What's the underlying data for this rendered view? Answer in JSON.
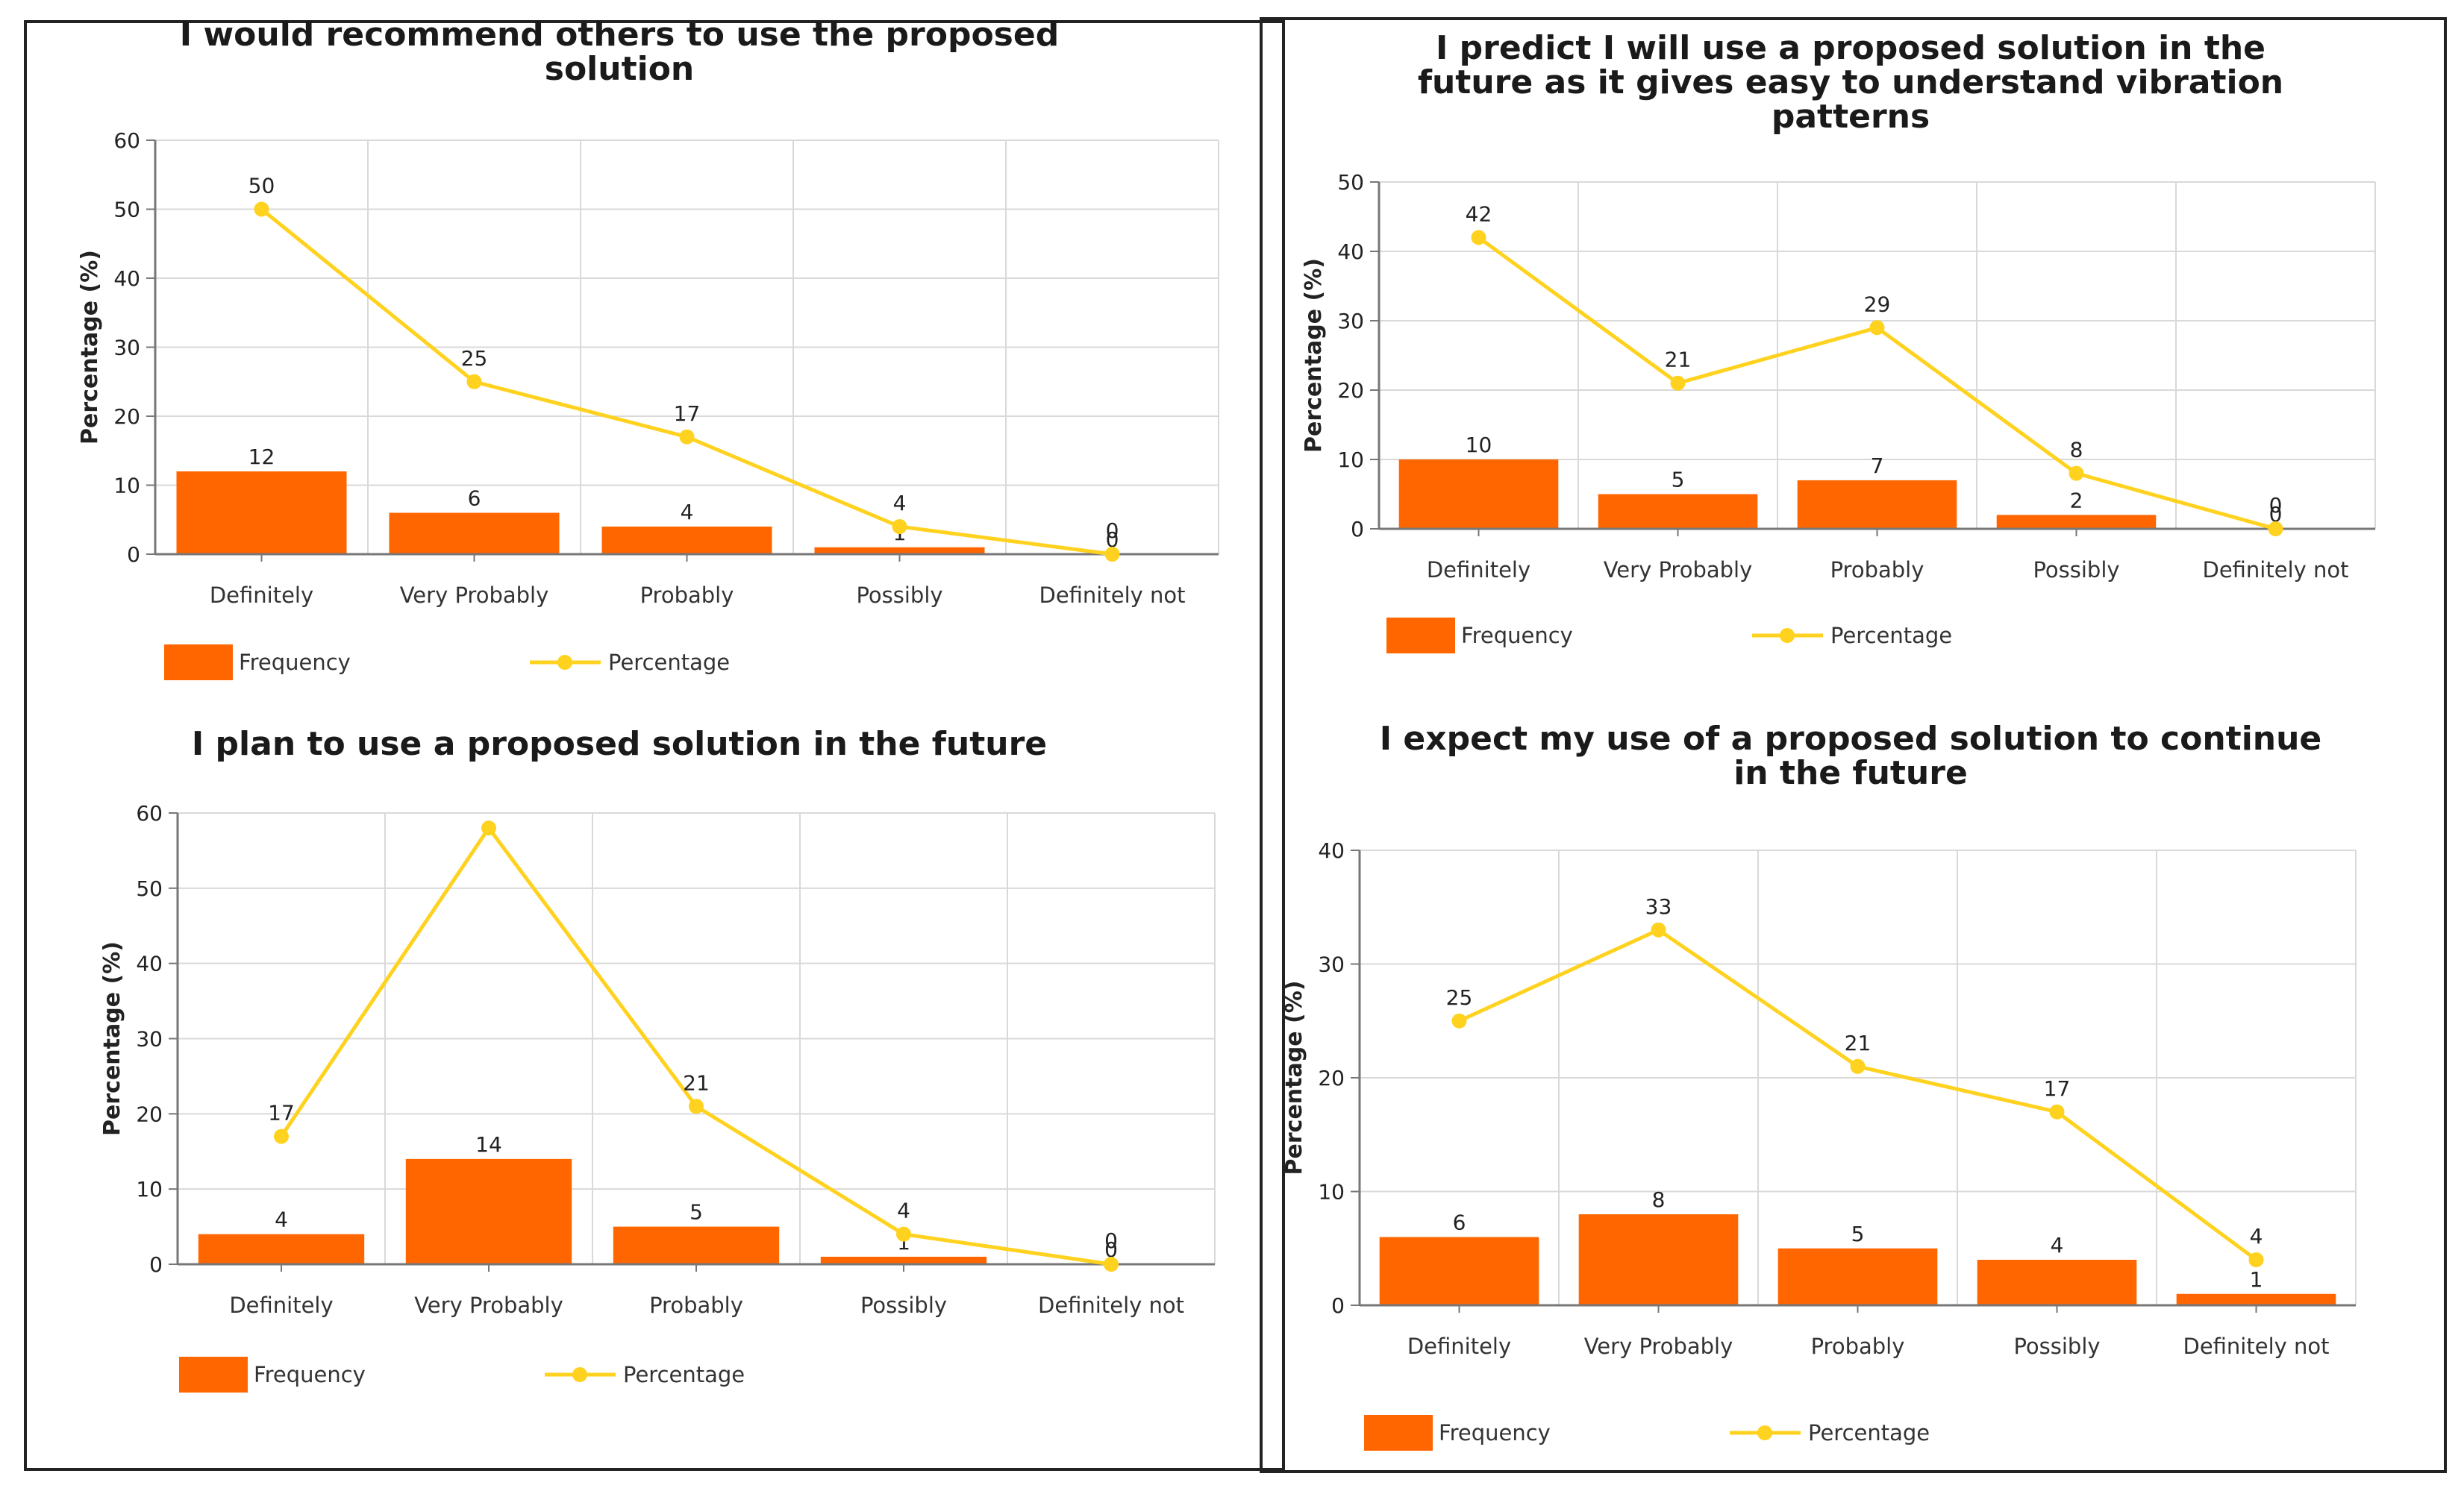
{
  "colors": {
    "bar": "#ff6600",
    "line": "#ffd21f",
    "grid": "#d9d9d9",
    "axis": "#777777",
    "text": "#222222"
  },
  "legend": {
    "frequency": "Frequency",
    "percentage": "Percentage"
  },
  "chart_data": [
    {
      "type": "bar",
      "title_lines": [
        "I would recommend others to use the proposed",
        "solution"
      ],
      "ylabel": "Percentage (%)",
      "ylim": [
        0,
        60
      ],
      "yticks": [
        0,
        10,
        20,
        30,
        40,
        50,
        60
      ],
      "categories": [
        "Definitely",
        "Very Probably",
        "Probably",
        "Possibly",
        "Definitely not"
      ],
      "series": [
        {
          "name": "Frequency",
          "type": "bar",
          "values": [
            12,
            6,
            4,
            1,
            0
          ],
          "labels": [
            "12",
            "6",
            "4",
            "1",
            "0"
          ]
        },
        {
          "name": "Percentage",
          "type": "line",
          "values": [
            50,
            25,
            17,
            4,
            0
          ],
          "labels": [
            "50",
            "25",
            "17",
            "4",
            "0"
          ]
        }
      ]
    },
    {
      "type": "bar",
      "title_lines": [
        "I predict I will use a proposed solution in the",
        "future as it gives easy to understand vibration",
        "patterns"
      ],
      "ylabel": "Percentage (%)",
      "ylim": [
        0,
        50
      ],
      "yticks": [
        0,
        10,
        20,
        30,
        40,
        50
      ],
      "categories": [
        "Definitely",
        "Very Probably",
        "Probably",
        "Possibly",
        "Definitely not"
      ],
      "series": [
        {
          "name": "Frequency",
          "type": "bar",
          "values": [
            10,
            5,
            7,
            2,
            0
          ],
          "labels": [
            "10",
            "5",
            "7",
            "2",
            "0"
          ]
        },
        {
          "name": "Percentage",
          "type": "line",
          "values": [
            42,
            21,
            29,
            8,
            0
          ],
          "labels": [
            "42",
            "21",
            "29",
            "8",
            "0"
          ]
        }
      ]
    },
    {
      "type": "bar",
      "title_lines": [
        "I plan to use a proposed solution in the future"
      ],
      "ylabel": "Percentage (%)",
      "ylim": [
        0,
        60
      ],
      "yticks": [
        0,
        10,
        20,
        30,
        40,
        50,
        60
      ],
      "categories": [
        "Definitely",
        "Very Probably",
        "Probably",
        "Possibly",
        "Definitely not"
      ],
      "series": [
        {
          "name": "Frequency",
          "type": "bar",
          "values": [
            4,
            14,
            5,
            1,
            0
          ],
          "labels": [
            "4",
            "14",
            "5",
            "1",
            "0"
          ]
        },
        {
          "name": "Percentage",
          "type": "line",
          "values": [
            17,
            58,
            21,
            4,
            0
          ],
          "labels": [
            "17",
            "",
            "21",
            "4",
            "0"
          ]
        }
      ]
    },
    {
      "type": "bar",
      "title_lines": [
        "I expect my use of a proposed solution to continue",
        "in the future"
      ],
      "ylabel": "Percentage (%)",
      "ylim": [
        0,
        40
      ],
      "yticks": [
        0,
        10,
        20,
        30,
        40
      ],
      "categories": [
        "Definitely",
        "Very Probably",
        "Probably",
        "Possibly",
        "Definitely not"
      ],
      "series": [
        {
          "name": "Frequency",
          "type": "bar",
          "values": [
            6,
            8,
            5,
            4,
            1
          ],
          "labels": [
            "6",
            "8",
            "5",
            "4",
            "1"
          ]
        },
        {
          "name": "Percentage",
          "type": "line",
          "values": [
            25,
            33,
            21,
            17,
            4
          ],
          "labels": [
            "25",
            "33",
            "21",
            "17",
            "4"
          ]
        }
      ]
    }
  ]
}
